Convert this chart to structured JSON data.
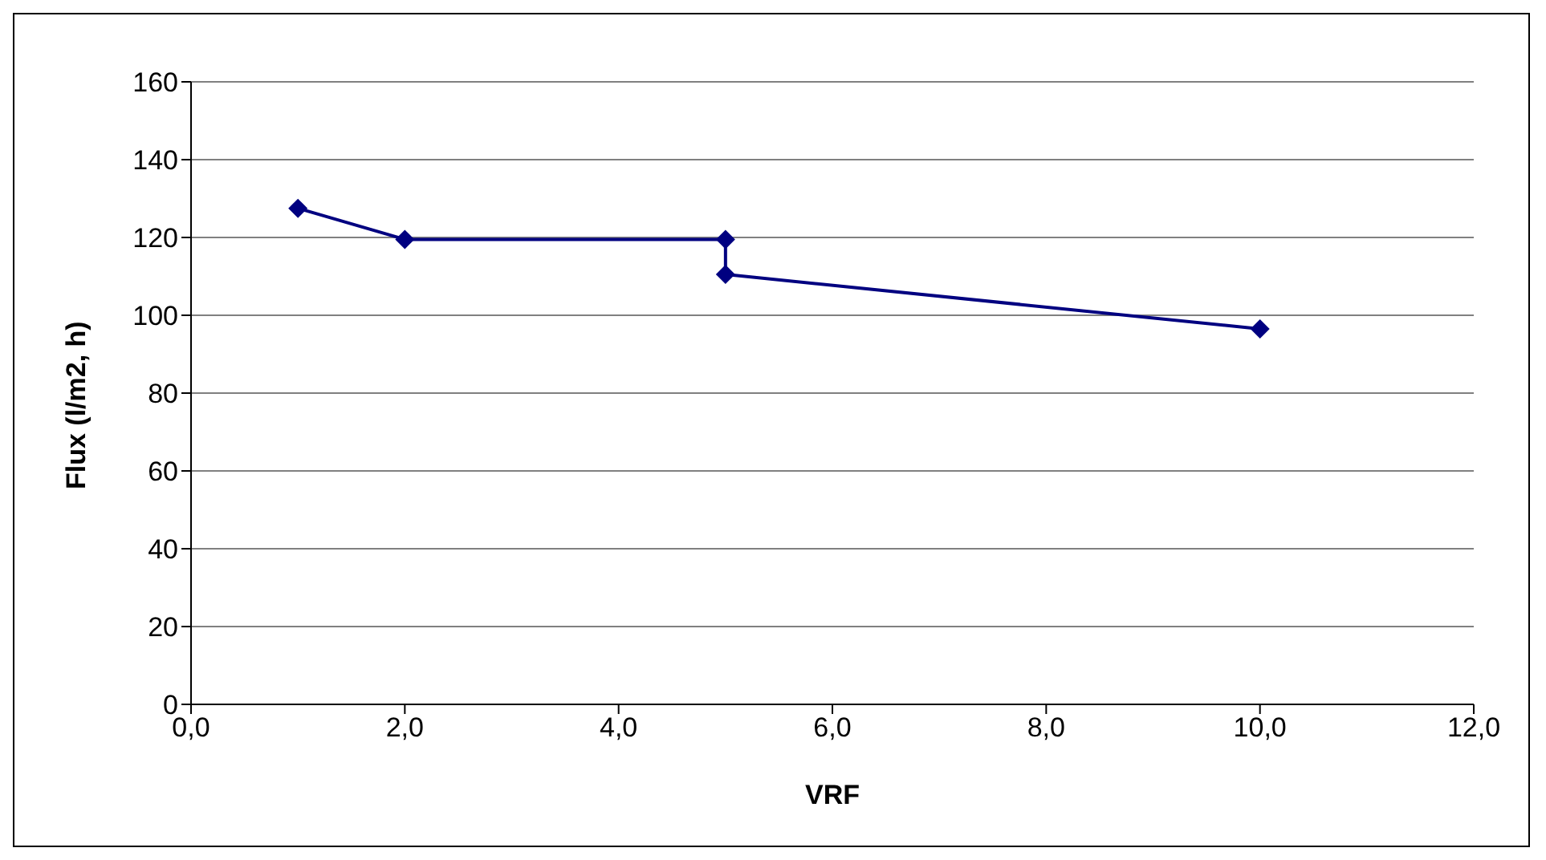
{
  "chart_data": {
    "type": "line",
    "xlabel": "VRF",
    "ylabel": "Flux (l/m2, h)",
    "x": [
      1.0,
      2.0,
      5.0,
      5.0,
      10.0
    ],
    "series": [
      {
        "color": "#000080",
        "values": [
          127.5,
          119.5,
          119.5,
          110.5,
          96.5
        ]
      }
    ],
    "xlim": [
      0,
      12
    ],
    "xticks": [
      {
        "value": 0,
        "label": "0,0"
      },
      {
        "value": 2,
        "label": "2,0"
      },
      {
        "value": 4,
        "label": "4,0"
      },
      {
        "value": 6,
        "label": "6,0"
      },
      {
        "value": 8,
        "label": "8,0"
      },
      {
        "value": 10,
        "label": "10,0"
      },
      {
        "value": 12,
        "label": "12,0"
      }
    ],
    "ylim": [
      0,
      160
    ],
    "yticks": [
      0,
      20,
      40,
      60,
      80,
      100,
      120,
      140,
      160
    ],
    "grid": "y",
    "marker": "diamond",
    "line_style": "solid",
    "legend": false
  }
}
